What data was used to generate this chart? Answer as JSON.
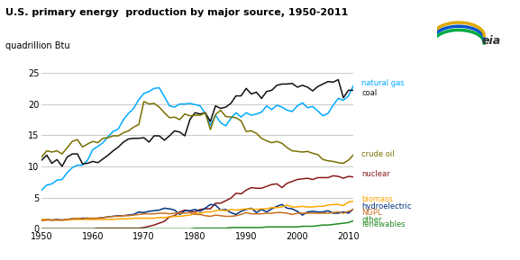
{
  "title": "U.S. primary energy  production by major source, 1950-2011",
  "ylabel": "quadrillion Btu",
  "ylim": [
    0,
    25
  ],
  "yticks": [
    0,
    5,
    10,
    15,
    20,
    25
  ],
  "xlim": [
    1950,
    2012
  ],
  "xticks": [
    1950,
    1960,
    1970,
    1980,
    1990,
    2000,
    2010
  ],
  "years": [
    1950,
    1951,
    1952,
    1953,
    1954,
    1955,
    1956,
    1957,
    1958,
    1959,
    1960,
    1961,
    1962,
    1963,
    1964,
    1965,
    1966,
    1967,
    1968,
    1969,
    1970,
    1971,
    1972,
    1973,
    1974,
    1975,
    1976,
    1977,
    1978,
    1979,
    1980,
    1981,
    1982,
    1983,
    1984,
    1985,
    1986,
    1987,
    1988,
    1989,
    1990,
    1991,
    1992,
    1993,
    1994,
    1995,
    1996,
    1997,
    1998,
    1999,
    2000,
    2001,
    2002,
    2003,
    2004,
    2005,
    2006,
    2007,
    2008,
    2009,
    2010,
    2011
  ],
  "natural_gas": [
    6.2,
    7.0,
    7.2,
    7.8,
    7.9,
    9.0,
    9.8,
    10.2,
    10.2,
    11.0,
    12.7,
    13.2,
    13.8,
    14.8,
    15.6,
    16.0,
    17.5,
    18.5,
    19.3,
    20.7,
    21.7,
    22.0,
    22.5,
    22.6,
    21.2,
    19.7,
    19.5,
    20.0,
    20.0,
    20.1,
    19.9,
    19.7,
    18.5,
    16.6,
    18.2,
    17.0,
    16.5,
    17.7,
    18.6,
    17.9,
    18.6,
    18.2,
    18.4,
    18.7,
    19.7,
    19.1,
    19.8,
    19.5,
    19.0,
    18.8,
    19.7,
    20.2,
    19.4,
    19.6,
    18.9,
    18.1,
    18.5,
    19.8,
    20.9,
    20.6,
    21.3,
    23.0
  ],
  "coal": [
    11.0,
    11.8,
    10.5,
    11.1,
    10.0,
    11.5,
    12.0,
    12.0,
    10.4,
    10.5,
    10.8,
    10.6,
    11.2,
    11.8,
    12.5,
    13.1,
    13.9,
    14.4,
    14.5,
    14.5,
    14.6,
    13.9,
    14.9,
    14.9,
    14.2,
    14.9,
    15.7,
    15.5,
    14.9,
    17.5,
    18.6,
    18.4,
    18.6,
    17.2,
    19.7,
    19.3,
    19.5,
    20.1,
    21.3,
    21.3,
    22.5,
    21.6,
    21.9,
    20.9,
    22.0,
    22.2,
    23.0,
    23.2,
    23.2,
    23.3,
    22.7,
    23.0,
    22.7,
    22.1,
    22.8,
    23.2,
    23.6,
    23.5,
    23.9,
    21.0,
    22.2,
    22.2
  ],
  "crude_oil": [
    11.5,
    12.5,
    12.3,
    12.5,
    12.0,
    13.0,
    14.0,
    14.3,
    13.1,
    13.6,
    14.0,
    13.8,
    14.5,
    14.6,
    14.9,
    14.9,
    15.4,
    15.7,
    16.3,
    16.7,
    20.4,
    20.0,
    20.1,
    19.5,
    18.6,
    17.8,
    17.9,
    17.5,
    18.4,
    18.1,
    18.2,
    18.2,
    18.6,
    15.9,
    18.3,
    19.0,
    18.0,
    17.9,
    17.8,
    17.3,
    15.6,
    15.7,
    15.3,
    14.5,
    14.1,
    13.8,
    14.0,
    13.7,
    13.0,
    12.5,
    12.4,
    12.3,
    12.4,
    12.1,
    11.9,
    11.1,
    10.9,
    10.8,
    10.6,
    10.5,
    11.0,
    11.9
  ],
  "nuclear": [
    0.0,
    0.0,
    0.0,
    0.0,
    0.0,
    0.0,
    0.0,
    0.0,
    0.0,
    0.0,
    0.0,
    0.1,
    0.1,
    0.1,
    0.1,
    0.1,
    0.1,
    0.1,
    0.1,
    0.1,
    0.2,
    0.4,
    0.6,
    0.9,
    1.2,
    1.9,
    2.1,
    2.7,
    3.0,
    2.8,
    2.7,
    3.1,
    3.2,
    3.2,
    4.1,
    4.1,
    4.5,
    4.9,
    5.7,
    5.6,
    6.2,
    6.6,
    6.5,
    6.5,
    6.8,
    7.1,
    7.2,
    6.6,
    7.3,
    7.6,
    7.9,
    8.0,
    8.1,
    7.9,
    8.2,
    8.2,
    8.2,
    8.5,
    8.4,
    8.1,
    8.4,
    8.3
  ],
  "hydroelectric": [
    1.4,
    1.5,
    1.4,
    1.5,
    1.4,
    1.5,
    1.6,
    1.6,
    1.7,
    1.7,
    1.6,
    1.7,
    1.8,
    1.9,
    2.0,
    2.1,
    2.1,
    2.2,
    2.3,
    2.7,
    2.6,
    2.8,
    2.9,
    3.0,
    3.3,
    3.2,
    3.0,
    2.3,
    2.9,
    2.9,
    3.1,
    2.8,
    3.3,
    3.9,
    3.8,
    3.0,
    3.1,
    2.6,
    2.3,
    2.8,
    3.1,
    3.3,
    2.6,
    3.1,
    2.7,
    3.2,
    3.6,
    3.9,
    3.3,
    3.2,
    2.8,
    2.2,
    2.7,
    2.8,
    2.7,
    2.7,
    2.9,
    2.5,
    2.5,
    2.7,
    2.5,
    3.2
  ],
  "biomass": [
    1.5,
    1.5,
    1.4,
    1.4,
    1.4,
    1.4,
    1.5,
    1.5,
    1.5,
    1.5,
    1.5,
    1.5,
    1.5,
    1.5,
    1.5,
    1.6,
    1.6,
    1.6,
    1.7,
    1.7,
    1.7,
    1.7,
    1.7,
    1.8,
    1.8,
    1.9,
    2.0,
    2.0,
    2.1,
    2.2,
    2.5,
    2.5,
    2.7,
    2.7,
    2.9,
    3.0,
    2.9,
    3.1,
    3.0,
    3.1,
    3.2,
    3.2,
    3.1,
    3.2,
    3.2,
    3.4,
    3.4,
    3.5,
    3.8,
    3.5,
    3.5,
    3.6,
    3.5,
    3.5,
    3.6,
    3.6,
    3.8,
    3.9,
    3.9,
    3.7,
    4.3,
    4.4
  ],
  "ngpl": [
    1.3,
    1.4,
    1.4,
    1.4,
    1.4,
    1.5,
    1.6,
    1.7,
    1.6,
    1.7,
    1.7,
    1.7,
    1.8,
    1.9,
    2.0,
    2.0,
    2.1,
    2.1,
    2.2,
    2.3,
    2.4,
    2.4,
    2.4,
    2.5,
    2.5,
    2.4,
    2.5,
    2.5,
    2.5,
    2.6,
    2.3,
    2.3,
    2.1,
    2.0,
    2.2,
    2.1,
    2.0,
    2.0,
    2.1,
    2.3,
    2.6,
    2.4,
    2.4,
    2.4,
    2.5,
    2.5,
    2.6,
    2.6,
    2.5,
    2.3,
    2.5,
    2.5,
    2.5,
    2.5,
    2.5,
    2.5,
    2.5,
    2.6,
    2.7,
    2.5,
    2.8,
    3.1
  ],
  "other_renewables": [
    0.0,
    0.0,
    0.0,
    0.0,
    0.0,
    0.0,
    0.0,
    0.0,
    0.0,
    0.0,
    0.0,
    0.0,
    0.0,
    0.0,
    0.0,
    0.0,
    0.0,
    0.0,
    0.0,
    0.0,
    0.0,
    0.0,
    0.0,
    0.0,
    0.0,
    0.0,
    0.0,
    0.0,
    0.0,
    0.0,
    0.1,
    0.1,
    0.1,
    0.1,
    0.1,
    0.1,
    0.1,
    0.2,
    0.2,
    0.2,
    0.2,
    0.2,
    0.2,
    0.2,
    0.3,
    0.3,
    0.3,
    0.3,
    0.3,
    0.3,
    0.3,
    0.4,
    0.4,
    0.4,
    0.5,
    0.6,
    0.6,
    0.7,
    0.8,
    0.9,
    1.0,
    1.3
  ],
  "colors": {
    "natural_gas": "#00aaff",
    "coal": "#111111",
    "crude_oil": "#7a7000",
    "nuclear": "#8b1a1a",
    "hydroelectric": "#003380",
    "biomass": "#ffa500",
    "ngpl": "#c87020",
    "other_renewables": "#228b22"
  },
  "background_color": "#ffffff",
  "grid_color": "#c0c0c0"
}
